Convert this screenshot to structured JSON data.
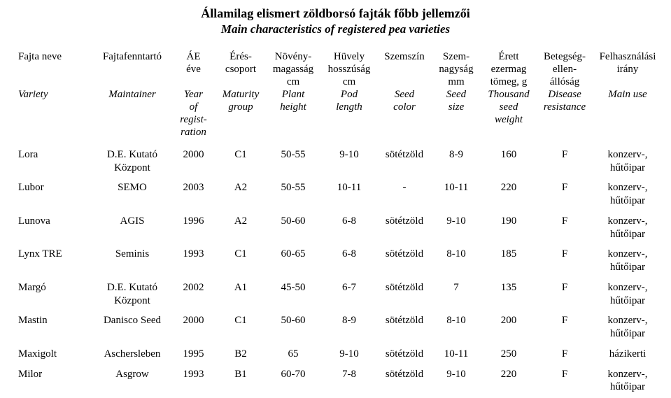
{
  "title_hu": "Államilag elismert zöldborsó fajták főbb jellemzői",
  "title_en": "Main characteristics of registered pea varieties",
  "header": {
    "name_hu": "Fajta neve",
    "name_en": "Variety",
    "maint_hu": "Fajtafenntartó",
    "maint_en": "Maintainer",
    "year_hu": "ÁE\néve",
    "year_en": "Year\nof\nregist-\nration",
    "matur_hu": "Érés-\ncsoport",
    "matur_en": "Maturity\ngroup",
    "height_hu": "Növény-\nmagasság\ncm",
    "height_en": "Plant\nheight",
    "pod_hu": "Hüvely\nhosszúság\ncm",
    "pod_en": "Pod\nlength",
    "color_hu": "Szemszín",
    "color_en": "Seed\ncolor",
    "size_hu": "Szem-\nnagyság\nmm",
    "size_en": "Seed\nsize",
    "weight_hu": "Érett\nezermag\ntömeg, g",
    "weight_en": "Thousand\nseed\nweight",
    "res_hu": "Betegség-\nellen-\nállóság",
    "res_en": "Disease\nresistance",
    "use_hu": "Felhasználási\nirány",
    "use_en": "Main use"
  },
  "rows": [
    {
      "name": "Lora",
      "maint": "D.E. Kutató\nKözpont",
      "year": "2000",
      "matur": "C1",
      "height": "50-55",
      "pod": "9-10",
      "color": "sötétzöld",
      "size": "8-9",
      "weight": "160",
      "res": "F",
      "use": "konzerv-,\nhűtőipar"
    },
    {
      "name": "Lubor",
      "maint": "SEMO",
      "year": "2003",
      "matur": "A2",
      "height": "50-55",
      "pod": "10-11",
      "color": "-",
      "size": "10-11",
      "weight": "220",
      "res": "F",
      "use": "konzerv-,\nhűtőipar"
    },
    {
      "name": "Lunova",
      "maint": "AGIS",
      "year": "1996",
      "matur": "A2",
      "height": "50-60",
      "pod": "6-8",
      "color": "sötétzöld",
      "size": "9-10",
      "weight": "190",
      "res": "F",
      "use": "konzerv-,\nhűtőipar"
    },
    {
      "name": "Lynx TRE",
      "maint": "Seminis",
      "year": "1993",
      "matur": "C1",
      "height": "60-65",
      "pod": "6-8",
      "color": "sötétzöld",
      "size": "8-10",
      "weight": "185",
      "res": "F",
      "use": "konzerv-,\nhűtőipar"
    },
    {
      "name": "Margó",
      "maint": "D.E. Kutató\nKözpont",
      "year": "2002",
      "matur": "A1",
      "height": "45-50",
      "pod": "6-7",
      "color": "sötétzöld",
      "size": "7",
      "weight": "135",
      "res": "F",
      "use": "konzerv-,\nhűtőipar"
    },
    {
      "name": "Mastin",
      "maint": "Danisco Seed",
      "year": "2000",
      "matur": "C1",
      "height": "50-60",
      "pod": "8-9",
      "color": "sötétzöld",
      "size": "8-10",
      "weight": "200",
      "res": "F",
      "use": "konzerv-,\nhűtőipar"
    },
    {
      "name": "Maxigolt",
      "maint": "Aschersleben",
      "year": "1995",
      "matur": "B2",
      "height": "65",
      "pod": "9-10",
      "color": "sötétzöld",
      "size": "10-11",
      "weight": "250",
      "res": "F",
      "use": "házikerti"
    },
    {
      "name": "Milor",
      "maint": "Asgrow",
      "year": "1993",
      "matur": "B1",
      "height": "60-70",
      "pod": "7-8",
      "color": "sötétzöld",
      "size": "9-10",
      "weight": "220",
      "res": "F",
      "use": "konzerv-,\nhűtőipar"
    }
  ]
}
